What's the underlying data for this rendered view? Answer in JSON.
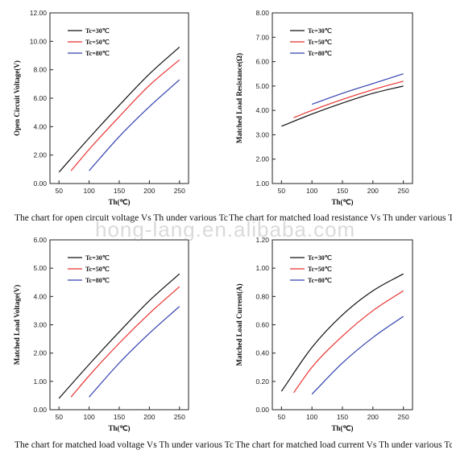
{
  "watermark": "hong-lang.en.alibaba.com",
  "chart_data": [
    {
      "type": "line",
      "caption": "The chart for open circuit voltage Vs Th under various Tc",
      "xlabel": "Th(℃)",
      "ylabel": "Open Circuit Voltage(V)",
      "xlim": [
        35,
        265
      ],
      "ylim": [
        0,
        12
      ],
      "xticks": [
        50,
        100,
        150,
        200,
        250
      ],
      "yticks": [
        0,
        2,
        4,
        6,
        8,
        10,
        12
      ],
      "ytick_labels": [
        "0.00",
        "2.00",
        "4.00",
        "6.00",
        "8.00",
        "10.00",
        "12.00"
      ],
      "legend_position": "top-left",
      "series": [
        {
          "name": "Tc=30℃",
          "color": "#111111",
          "x": [
            50,
            100,
            150,
            200,
            250
          ],
          "y": [
            0.8,
            3.2,
            5.5,
            7.7,
            9.6
          ]
        },
        {
          "name": "Tc=50℃",
          "color": "#e8322f",
          "x": [
            70,
            100,
            150,
            200,
            250
          ],
          "y": [
            0.9,
            2.4,
            4.7,
            6.9,
            8.7
          ]
        },
        {
          "name": "Tc=80℃",
          "color": "#3040b0",
          "x": [
            100,
            150,
            200,
            250
          ],
          "y": [
            0.9,
            3.3,
            5.4,
            7.3
          ]
        }
      ]
    },
    {
      "type": "line",
      "caption": "The chart for matched load resistance Vs Th under various Tc",
      "xlabel": "Th(℃)",
      "ylabel": "Matched Load Resistance(Ω)",
      "xlim": [
        35,
        265
      ],
      "ylim": [
        1,
        8
      ],
      "xticks": [
        50,
        100,
        150,
        200,
        250
      ],
      "yticks": [
        1,
        2,
        3,
        4,
        5,
        6,
        7,
        8
      ],
      "ytick_labels": [
        "1.00",
        "2.00",
        "3.00",
        "4.00",
        "5.00",
        "6.00",
        "7.00",
        "8.00"
      ],
      "legend_position": "top-left",
      "series": [
        {
          "name": "Tc=30℃",
          "color": "#111111",
          "x": [
            50,
            100,
            150,
            200,
            250
          ],
          "y": [
            3.35,
            3.85,
            4.3,
            4.7,
            5.0
          ]
        },
        {
          "name": "Tc=50℃",
          "color": "#e8322f",
          "x": [
            70,
            100,
            150,
            200,
            250
          ],
          "y": [
            3.7,
            4.0,
            4.45,
            4.85,
            5.2
          ]
        },
        {
          "name": "Tc=80℃",
          "color": "#3040b0",
          "x": [
            100,
            150,
            200,
            250
          ],
          "y": [
            4.25,
            4.7,
            5.1,
            5.5
          ]
        }
      ]
    },
    {
      "type": "line",
      "caption": "The chart for matched load voltage Vs Th under various Tc",
      "xlabel": "Th(℃)",
      "ylabel": "Matched Load Voltage(V)",
      "xlim": [
        35,
        265
      ],
      "ylim": [
        0,
        6
      ],
      "xticks": [
        50,
        100,
        150,
        200,
        250
      ],
      "yticks": [
        0,
        1,
        2,
        3,
        4,
        5,
        6
      ],
      "ytick_labels": [
        "0.00",
        "1.00",
        "2.00",
        "3.00",
        "4.00",
        "5.00",
        "6.00"
      ],
      "legend_position": "top-left",
      "series": [
        {
          "name": "Tc=30℃",
          "color": "#111111",
          "x": [
            50,
            100,
            150,
            200,
            250
          ],
          "y": [
            0.4,
            1.6,
            2.75,
            3.85,
            4.8
          ]
        },
        {
          "name": "Tc=50℃",
          "color": "#e8322f",
          "x": [
            70,
            100,
            150,
            200,
            250
          ],
          "y": [
            0.45,
            1.2,
            2.35,
            3.4,
            4.35
          ]
        },
        {
          "name": "Tc=80℃",
          "color": "#3040b0",
          "x": [
            100,
            150,
            200,
            250
          ],
          "y": [
            0.45,
            1.65,
            2.7,
            3.65
          ]
        }
      ]
    },
    {
      "type": "line",
      "caption": "The chart for matched load current Vs Th under various Tc",
      "xlabel": "Th(℃)",
      "ylabel": "Matched Load Current(A)",
      "xlim": [
        35,
        265
      ],
      "ylim": [
        0,
        1.2
      ],
      "xticks": [
        50,
        100,
        150,
        200,
        250
      ],
      "yticks": [
        0,
        0.2,
        0.4,
        0.6,
        0.8,
        1.0,
        1.2
      ],
      "ytick_labels": [
        "0.00",
        "0.20",
        "0.40",
        "0.60",
        "0.80",
        "1.00",
        "1.20"
      ],
      "legend_position": "top-left",
      "series": [
        {
          "name": "Tc=30℃",
          "color": "#111111",
          "x": [
            50,
            100,
            150,
            200,
            250
          ],
          "y": [
            0.13,
            0.44,
            0.67,
            0.84,
            0.96
          ]
        },
        {
          "name": "Tc=50℃",
          "color": "#e8322f",
          "x": [
            70,
            100,
            150,
            200,
            250
          ],
          "y": [
            0.12,
            0.3,
            0.52,
            0.7,
            0.84
          ]
        },
        {
          "name": "Tc=80℃",
          "color": "#3040b0",
          "x": [
            100,
            150,
            200,
            250
          ],
          "y": [
            0.11,
            0.33,
            0.51,
            0.66
          ]
        }
      ]
    }
  ]
}
